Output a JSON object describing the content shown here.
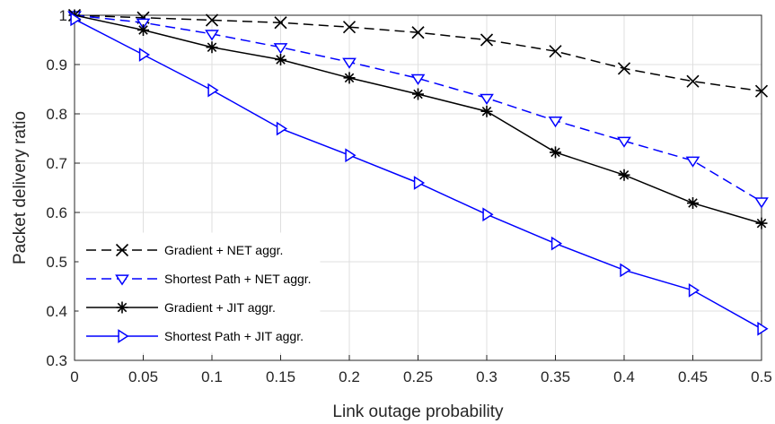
{
  "chart_data": {
    "type": "line",
    "title": "",
    "xlabel": "Link outage probability",
    "ylabel": "Packet delivery ratio",
    "x": [
      0,
      0.05,
      0.1,
      0.15,
      0.2,
      0.25,
      0.3,
      0.35,
      0.4,
      0.45,
      0.5
    ],
    "x_tick_labels": [
      "0",
      "0.05",
      "0.1",
      "0.15",
      "0.2",
      "0.25",
      "0.3",
      "0.35",
      "0.4",
      "0.45",
      "0.5"
    ],
    "y_tick_labels": [
      "0.3",
      "0.4",
      "0.5",
      "0.6",
      "0.7",
      "0.8",
      "0.9",
      "1"
    ],
    "xlim": [
      0,
      0.5
    ],
    "ylim": [
      0.3,
      1.0
    ],
    "grid": true,
    "legend_position": "bottom-left",
    "series": [
      {
        "name": "Gradient + NET aggr.",
        "color": "#000000",
        "dash": "dashed",
        "marker": "x",
        "values": [
          1.0,
          0.995,
          0.99,
          0.985,
          0.976,
          0.965,
          0.95,
          0.927,
          0.892,
          0.866,
          0.846
        ]
      },
      {
        "name": "Shortest Path  + NET aggr.",
        "color": "#0000ff",
        "dash": "dashed",
        "marker": "triangle-down",
        "values": [
          1.0,
          0.985,
          0.962,
          0.935,
          0.905,
          0.872,
          0.832,
          0.786,
          0.745,
          0.705,
          0.622
        ]
      },
      {
        "name": "Gradient + JIT aggr.",
        "color": "#000000",
        "dash": "solid",
        "marker": "asterisk",
        "values": [
          1.0,
          0.97,
          0.935,
          0.91,
          0.873,
          0.84,
          0.805,
          0.722,
          0.676,
          0.619,
          0.578
        ]
      },
      {
        "name": "Shortest Path  + JIT aggr.",
        "color": "#0000ff",
        "dash": "solid",
        "marker": "triangle-right",
        "values": [
          0.992,
          0.92,
          0.848,
          0.77,
          0.716,
          0.66,
          0.596,
          0.537,
          0.483,
          0.442,
          0.364
        ]
      }
    ]
  }
}
